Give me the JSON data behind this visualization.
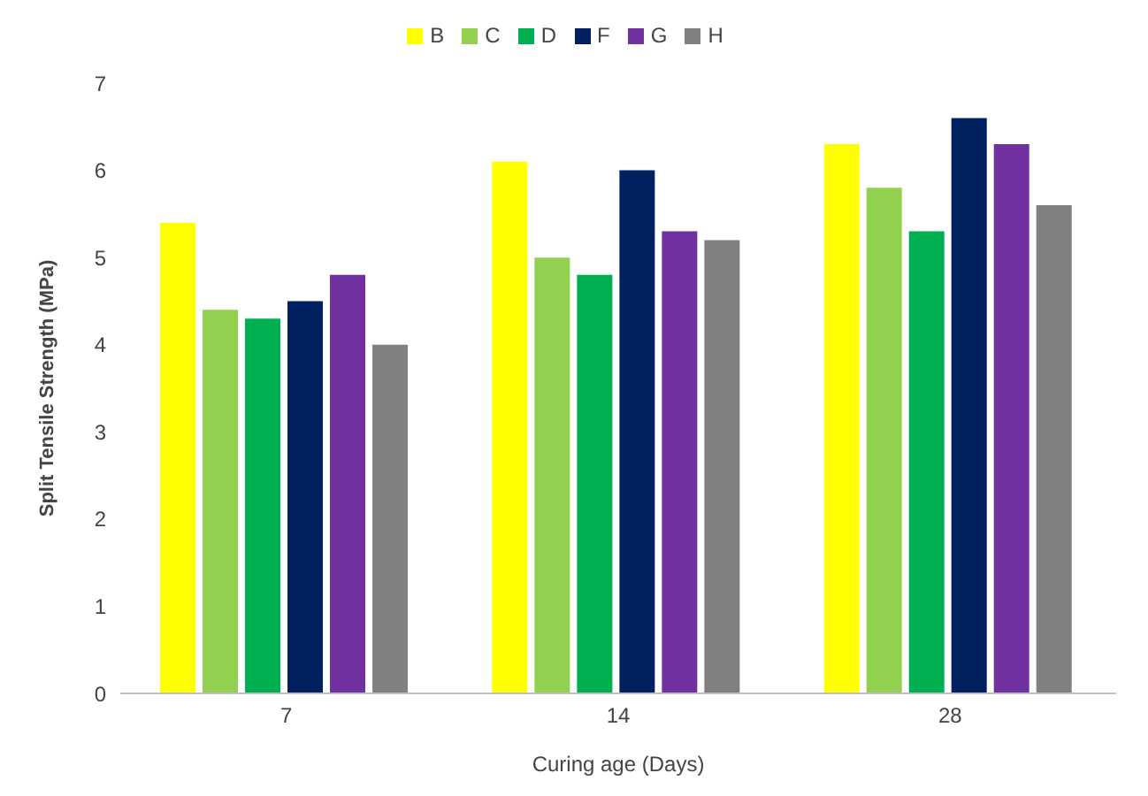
{
  "chart_data": {
    "type": "bar",
    "xlabel": "Curing age (Days)",
    "ylabel": "Split Tensile Strength (MPa)",
    "categories": [
      "7",
      "14",
      "28"
    ],
    "series": [
      {
        "name": "B",
        "color": "#ffff00",
        "values": [
          5.4,
          6.1,
          6.3
        ]
      },
      {
        "name": "C",
        "color": "#92d050",
        "values": [
          4.4,
          5.0,
          5.8
        ]
      },
      {
        "name": "D",
        "color": "#00b050",
        "values": [
          4.3,
          4.8,
          5.3
        ]
      },
      {
        "name": "F",
        "color": "#002060",
        "values": [
          4.5,
          6.0,
          6.6
        ]
      },
      {
        "name": "G",
        "color": "#7030a0",
        "values": [
          4.8,
          5.3,
          6.3
        ]
      },
      {
        "name": "H",
        "color": "#808080",
        "values": [
          4.0,
          5.2,
          5.6
        ]
      }
    ],
    "ylim": [
      0,
      7
    ],
    "yticks": [
      0,
      1,
      2,
      3,
      4,
      5,
      6,
      7
    ],
    "grid": false,
    "legend": "top"
  }
}
